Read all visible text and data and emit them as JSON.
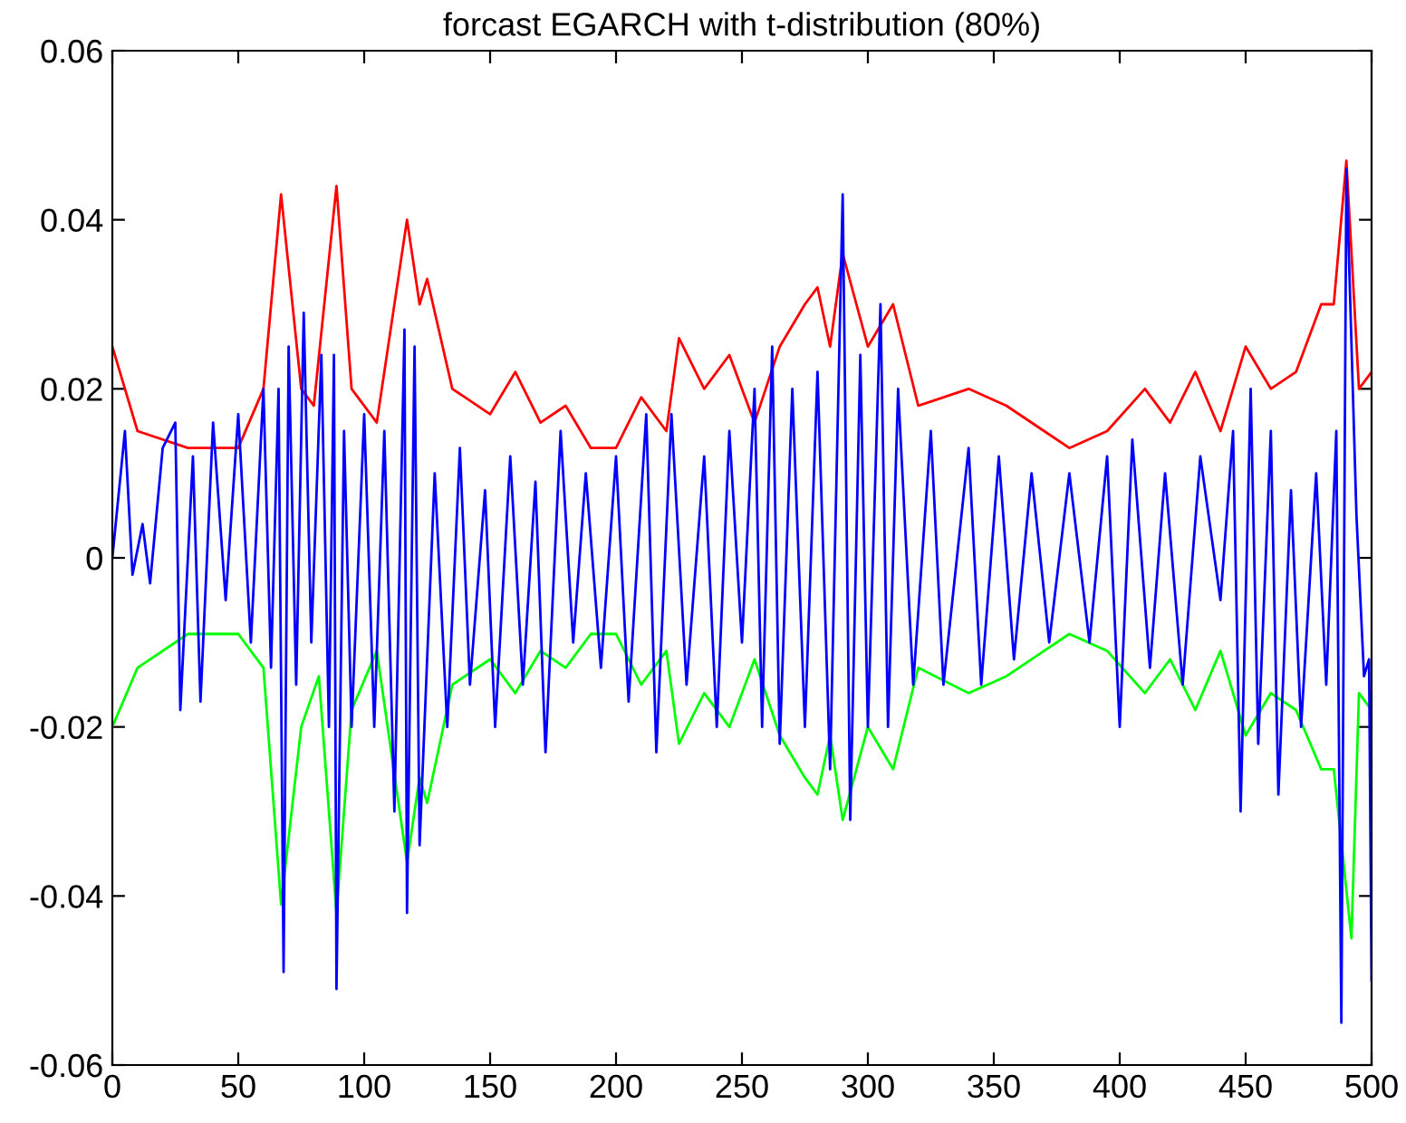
{
  "chart_data": {
    "type": "line",
    "title": "forcast EGARCH with t-distribution (80%)",
    "xlim": [
      0,
      500
    ],
    "ylim": [
      -0.06,
      0.06
    ],
    "xticks": [
      0,
      50,
      100,
      150,
      200,
      250,
      300,
      350,
      400,
      450,
      500
    ],
    "yticks": [
      {
        "value": -0.06,
        "label": "-0.06"
      },
      {
        "value": -0.04,
        "label": "-0.04"
      },
      {
        "value": -0.02,
        "label": "-0.02"
      },
      {
        "value": 0,
        "label": "0"
      },
      {
        "value": 0.02,
        "label": "0.02"
      },
      {
        "value": 0.04,
        "label": "0.04"
      },
      {
        "value": 0.06,
        "label": "0.06"
      }
    ],
    "grid": false,
    "marker": "none",
    "line_style": "solid",
    "series": [
      {
        "color": "#ff0000",
        "x": [
          0,
          10,
          30,
          50,
          60,
          67,
          75,
          80,
          89,
          95,
          105,
          117,
          122,
          125,
          135,
          150,
          160,
          170,
          180,
          190,
          200,
          210,
          220,
          225,
          235,
          245,
          255,
          265,
          275,
          280,
          285,
          290,
          300,
          310,
          320,
          340,
          355,
          370,
          380,
          395,
          410,
          420,
          430,
          440,
          450,
          460,
          470,
          480,
          485,
          490,
          495,
          500
        ],
        "values": [
          0.025,
          0.015,
          0.013,
          0.013,
          0.02,
          0.043,
          0.02,
          0.018,
          0.044,
          0.02,
          0.016,
          0.04,
          0.03,
          0.033,
          0.02,
          0.017,
          0.022,
          0.016,
          0.018,
          0.013,
          0.013,
          0.019,
          0.015,
          0.026,
          0.02,
          0.024,
          0.016,
          0.025,
          0.03,
          0.032,
          0.025,
          0.036,
          0.025,
          0.03,
          0.018,
          0.02,
          0.018,
          0.015,
          0.013,
          0.015,
          0.02,
          0.016,
          0.022,
          0.015,
          0.025,
          0.02,
          0.022,
          0.03,
          0.03,
          0.047,
          0.02,
          0.022
        ]
      },
      {
        "color": "#00ff00",
        "x": [
          0,
          10,
          30,
          50,
          60,
          67,
          75,
          82,
          89,
          95,
          105,
          117,
          122,
          125,
          135,
          150,
          160,
          170,
          180,
          190,
          200,
          210,
          220,
          225,
          235,
          245,
          255,
          265,
          275,
          280,
          285,
          290,
          300,
          310,
          320,
          340,
          355,
          370,
          380,
          395,
          410,
          420,
          430,
          440,
          450,
          460,
          470,
          480,
          485,
          492,
          495,
          500
        ],
        "values": [
          -0.02,
          -0.013,
          -0.009,
          -0.009,
          -0.013,
          -0.041,
          -0.02,
          -0.014,
          -0.042,
          -0.018,
          -0.011,
          -0.036,
          -0.026,
          -0.029,
          -0.015,
          -0.012,
          -0.016,
          -0.011,
          -0.013,
          -0.009,
          -0.009,
          -0.015,
          -0.011,
          -0.022,
          -0.016,
          -0.02,
          -0.012,
          -0.021,
          -0.026,
          -0.028,
          -0.021,
          -0.031,
          -0.02,
          -0.025,
          -0.013,
          -0.016,
          -0.014,
          -0.011,
          -0.009,
          -0.011,
          -0.016,
          -0.012,
          -0.018,
          -0.011,
          -0.021,
          -0.016,
          -0.018,
          -0.025,
          -0.025,
          -0.045,
          -0.016,
          -0.018
        ]
      },
      {
        "color": "#0000ff",
        "x": [
          0,
          5,
          8,
          12,
          15,
          20,
          25,
          27,
          32,
          35,
          40,
          45,
          50,
          55,
          60,
          63,
          66,
          68,
          70,
          73,
          76,
          79,
          83,
          86,
          88,
          89,
          92,
          95,
          100,
          104,
          108,
          112,
          116,
          117,
          120,
          122,
          128,
          133,
          138,
          142,
          148,
          152,
          158,
          163,
          168,
          172,
          178,
          183,
          188,
          194,
          200,
          205,
          212,
          216,
          222,
          228,
          235,
          240,
          245,
          250,
          255,
          258,
          262,
          265,
          270,
          275,
          280,
          285,
          290,
          293,
          297,
          300,
          305,
          308,
          312,
          318,
          325,
          330,
          340,
          345,
          352,
          358,
          365,
          372,
          380,
          388,
          395,
          400,
          405,
          412,
          418,
          425,
          432,
          440,
          445,
          448,
          452,
          455,
          460,
          463,
          468,
          472,
          478,
          482,
          486,
          488,
          490,
          494,
          497,
          499,
          500
        ],
        "values": [
          0.0,
          0.015,
          -0.002,
          0.004,
          -0.003,
          0.013,
          0.016,
          -0.018,
          0.012,
          -0.017,
          0.016,
          -0.005,
          0.017,
          -0.01,
          0.02,
          -0.013,
          0.02,
          -0.049,
          0.025,
          -0.015,
          0.029,
          -0.01,
          0.024,
          -0.02,
          0.024,
          -0.051,
          0.015,
          -0.02,
          0.017,
          -0.02,
          0.015,
          -0.03,
          0.027,
          -0.042,
          0.025,
          -0.034,
          0.01,
          -0.02,
          0.013,
          -0.015,
          0.008,
          -0.02,
          0.012,
          -0.015,
          0.009,
          -0.023,
          0.015,
          -0.01,
          0.01,
          -0.013,
          0.012,
          -0.017,
          0.017,
          -0.023,
          0.017,
          -0.015,
          0.012,
          -0.02,
          0.015,
          -0.01,
          0.02,
          -0.02,
          0.025,
          -0.022,
          0.02,
          -0.02,
          0.022,
          -0.025,
          0.043,
          -0.031,
          0.024,
          -0.02,
          0.03,
          -0.02,
          0.02,
          -0.015,
          0.015,
          -0.015,
          0.013,
          -0.015,
          0.012,
          -0.012,
          0.01,
          -0.01,
          0.01,
          -0.01,
          0.012,
          -0.02,
          0.014,
          -0.013,
          0.01,
          -0.015,
          0.012,
          -0.005,
          0.015,
          -0.03,
          0.02,
          -0.022,
          0.015,
          -0.028,
          0.008,
          -0.02,
          0.01,
          -0.015,
          0.015,
          -0.055,
          0.046,
          0.005,
          -0.014,
          -0.012,
          -0.05
        ]
      }
    ]
  }
}
